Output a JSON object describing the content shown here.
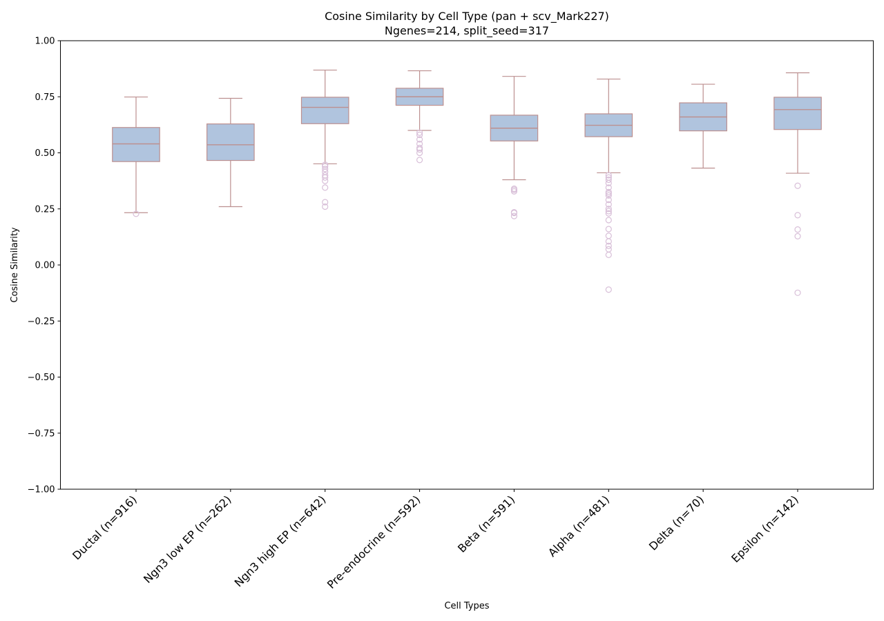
{
  "chart_data": {
    "type": "box",
    "title": "Cosine Similarity by Cell Type (pan + scv_Mark227)",
    "subtitle": "Ngenes=214, split_seed=317",
    "xlabel": "Cell Types",
    "ylabel": "Cosine Similarity",
    "ylim": [
      -1.0,
      1.0
    ],
    "yticks": [
      -1.0,
      -0.75,
      -0.5,
      -0.25,
      0.0,
      0.25,
      0.5,
      0.75,
      1.0
    ],
    "ytick_labels": [
      "−1.00",
      "−0.75",
      "−0.50",
      "−0.25",
      "0.00",
      "0.25",
      "0.50",
      "0.75",
      "1.00"
    ],
    "grid": false,
    "colors": {
      "box_fill": "#b0c4de",
      "box_edge": "#bc8f8f",
      "outlier_edge": "#d8bfd8"
    },
    "categories": [
      "Ductal (n=916)",
      "Ngn3 low EP (n=262)",
      "Ngn3 high EP (n=642)",
      "Pre-endocrine (n=592)",
      "Beta (n=591)",
      "Alpha (n=481)",
      "Delta (n=70)",
      "Epsilon (n=142)"
    ],
    "boxes": [
      {
        "whislo": 0.233,
        "q1": 0.461,
        "med": 0.54,
        "q3": 0.613,
        "whishi": 0.749,
        "fliers": [
          0.228
        ]
      },
      {
        "whislo": 0.26,
        "q1": 0.466,
        "med": 0.536,
        "q3": 0.629,
        "whishi": 0.743,
        "fliers": []
      },
      {
        "whislo": 0.451,
        "q1": 0.63,
        "med": 0.703,
        "q3": 0.748,
        "whishi": 0.869,
        "fliers": [
          0.447,
          0.44,
          0.428,
          0.415,
          0.4,
          0.39,
          0.375,
          0.345,
          0.28,
          0.26
        ]
      },
      {
        "whislo": 0.6,
        "q1": 0.712,
        "med": 0.75,
        "q3": 0.788,
        "whishi": 0.866,
        "fliers": [
          0.59,
          0.58,
          0.56,
          0.54,
          0.522,
          0.515,
          0.5,
          0.468
        ]
      },
      {
        "whislo": 0.38,
        "q1": 0.553,
        "med": 0.61,
        "q3": 0.668,
        "whishi": 0.841,
        "fliers": [
          0.34,
          0.335,
          0.328,
          0.235,
          0.232,
          0.218
        ]
      },
      {
        "whislo": 0.411,
        "q1": 0.572,
        "med": 0.623,
        "q3": 0.674,
        "whishi": 0.829,
        "fliers": [
          0.4,
          0.39,
          0.38,
          0.365,
          0.345,
          0.325,
          0.318,
          0.31,
          0.29,
          0.27,
          0.25,
          0.24,
          0.23,
          0.2,
          0.16,
          0.13,
          0.105,
          0.085,
          0.07,
          0.045,
          -0.11
        ]
      },
      {
        "whislo": 0.432,
        "q1": 0.598,
        "med": 0.66,
        "q3": 0.723,
        "whishi": 0.806,
        "fliers": []
      },
      {
        "whislo": 0.409,
        "q1": 0.604,
        "med": 0.693,
        "q3": 0.748,
        "whishi": 0.857,
        "fliers": [
          0.353,
          0.222,
          0.158,
          0.128,
          -0.124
        ]
      }
    ]
  }
}
